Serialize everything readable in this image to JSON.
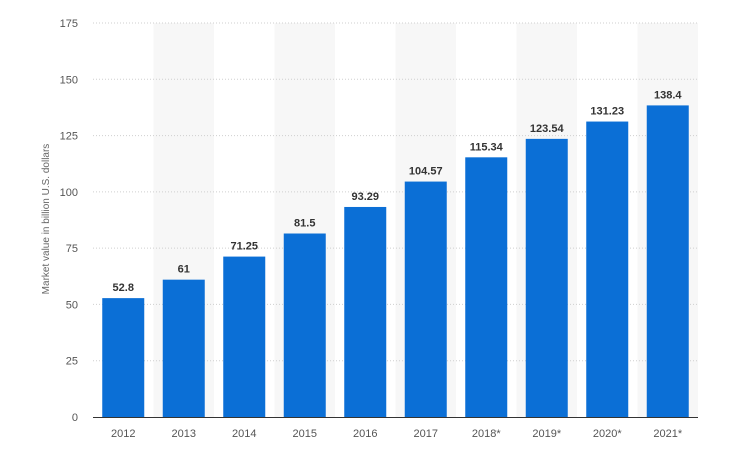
{
  "chart_data": {
    "type": "bar",
    "categories": [
      "2012",
      "2013",
      "2014",
      "2015",
      "2016",
      "2017",
      "2018*",
      "2019*",
      "2020*",
      "2021*"
    ],
    "values": [
      52.8,
      61,
      71.25,
      81.5,
      93.29,
      104.57,
      115.34,
      123.54,
      131.23,
      138.4
    ],
    "value_labels": [
      "52.8",
      "61",
      "71.25",
      "81.5",
      "93.29",
      "104.57",
      "115.34",
      "123.54",
      "131.23",
      "138.4"
    ],
    "ylabel": "Market value in billion U.S. dollars",
    "xlabel": "",
    "ylim": [
      0,
      175
    ],
    "yticks": [
      0,
      25,
      50,
      75,
      100,
      125,
      150,
      175
    ],
    "grid": true,
    "bar_color": "#0b6fd6",
    "alt_band_color": "#f7f7f7"
  }
}
